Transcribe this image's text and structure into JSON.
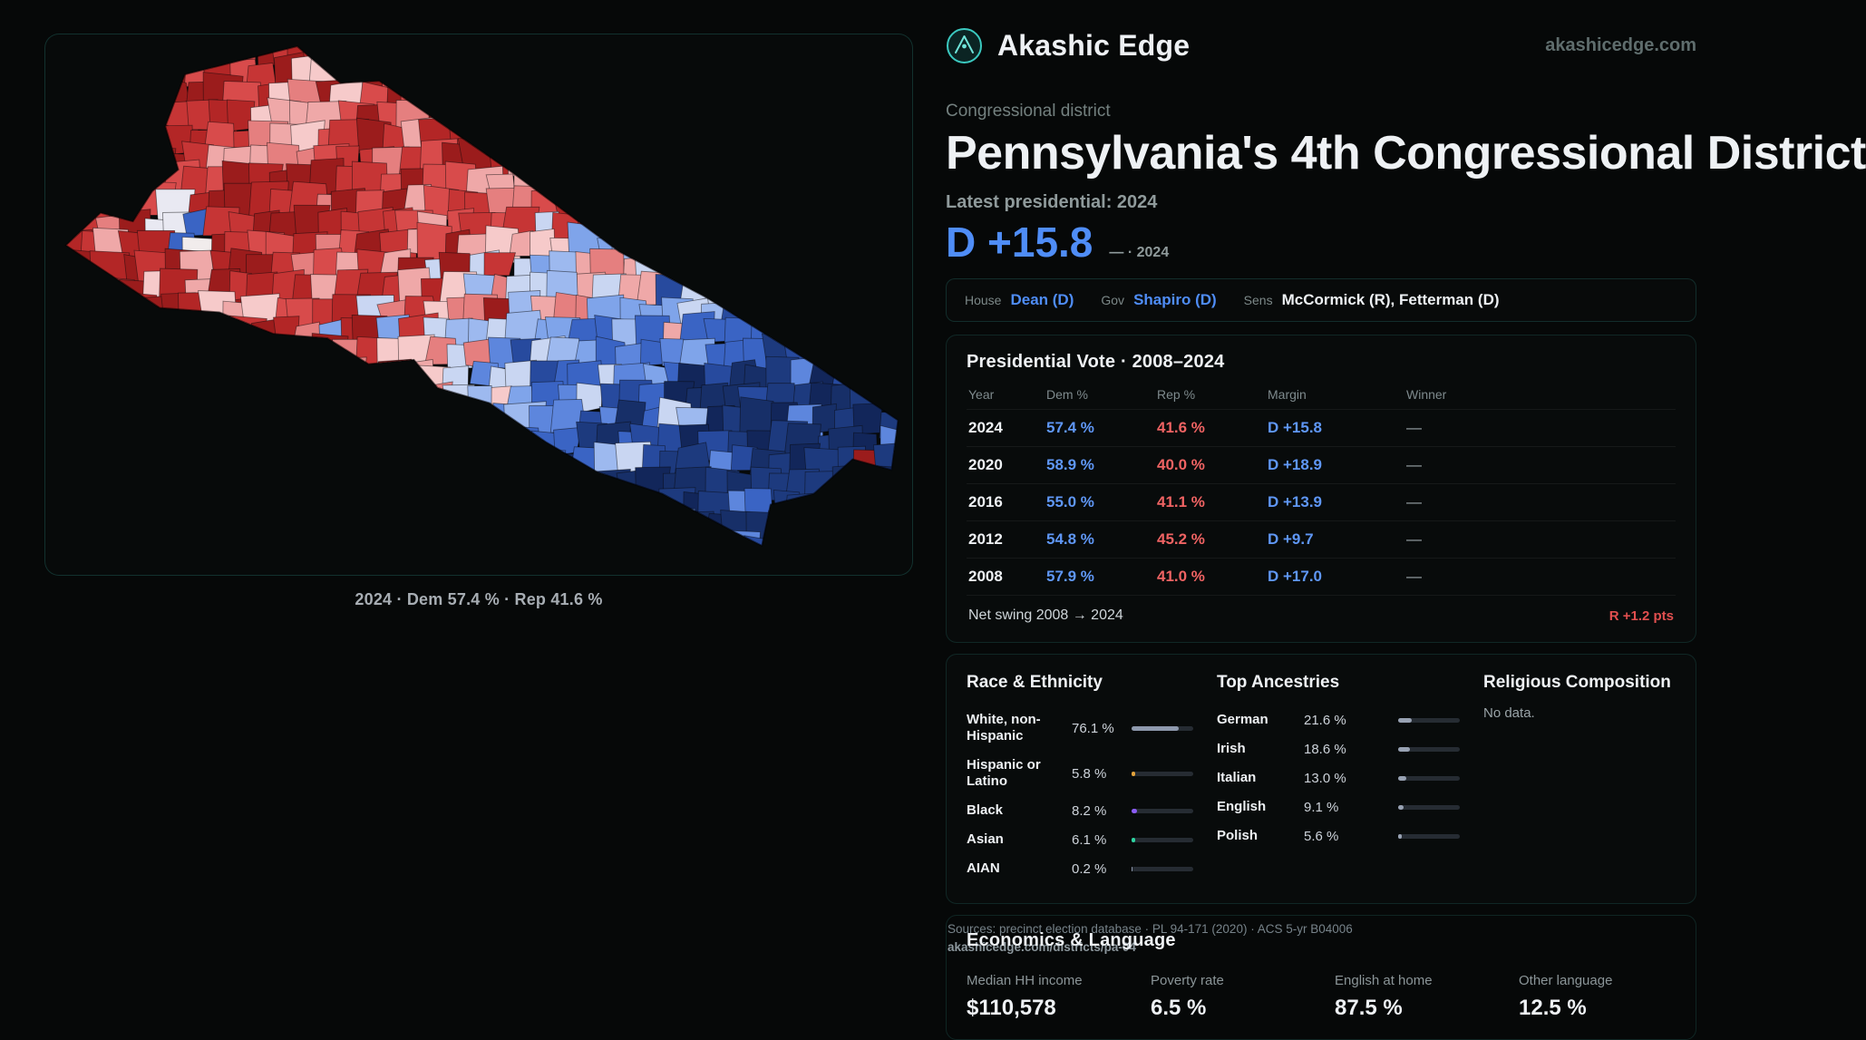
{
  "brand": {
    "name": "Akashic Edge",
    "site": "akashicedge.com"
  },
  "district": {
    "kicker": "Congressional district",
    "title": "Pennsylvania's 4th Congressional District",
    "latest_label": "Latest presidential: 2024",
    "headline_margin": "D +15.8",
    "headline_note": "— · 2024"
  },
  "officials": [
    {
      "role": "House",
      "name": "Dean (D)"
    },
    {
      "role": "Gov",
      "name": "Shapiro (D)"
    },
    {
      "role": "Sens",
      "name": "McCormick (R), Fetterman (D)"
    }
  ],
  "map": {
    "caption": "2024 · Dem 57.4 % · Rep 41.6 %",
    "palette": {
      "reds": [
        "#9b1c1c",
        "#b32626",
        "#c63535",
        "#d84b4b"
      ],
      "light_reds": [
        "#e57f7f",
        "#efa8a8",
        "#f6caca"
      ],
      "light_blues": [
        "#9db9ef",
        "#7fa4ea",
        "#c9d6f2"
      ],
      "blues": [
        "#5d86dd",
        "#3a64c4",
        "#274a9e"
      ],
      "deep_blues": [
        "#1d3a7e",
        "#172f68",
        "#12265a"
      ],
      "whites": [
        "#f1ecec",
        "#e9e9f2"
      ]
    }
  },
  "presidential_vote": {
    "title": "Presidential Vote · 2008–2024",
    "columns": {
      "year": "Year",
      "dem": "Dem %",
      "rep": "Rep %",
      "margin": "Margin",
      "winner": "Winner"
    },
    "rows": [
      {
        "year": "2024",
        "dem": "57.4 %",
        "rep": "41.6 %",
        "margin": "D +15.8",
        "winner": "—"
      },
      {
        "year": "2020",
        "dem": "58.9 %",
        "rep": "40.0 %",
        "margin": "D +18.9",
        "winner": "—"
      },
      {
        "year": "2016",
        "dem": "55.0 %",
        "rep": "41.1 %",
        "margin": "D +13.9",
        "winner": "—"
      },
      {
        "year": "2012",
        "dem": "54.8 %",
        "rep": "45.2 %",
        "margin": "D +9.7",
        "winner": "—"
      },
      {
        "year": "2008",
        "dem": "57.9 %",
        "rep": "41.0 %",
        "margin": "D +17.0",
        "winner": "—"
      }
    ],
    "net_swing_label": "Net swing 2008 → 2024",
    "net_swing_value": "R +1.2 pts"
  },
  "demographics": {
    "race": {
      "title": "Race & Ethnicity",
      "rows": [
        {
          "label": "White, non-Hispanic",
          "value": "76.1 %",
          "pct": 76.1,
          "color": "#8e99ad"
        },
        {
          "label": "Hispanic or Latino",
          "value": "5.8 %",
          "pct": 5.8,
          "color": "#e2a23b"
        },
        {
          "label": "Black",
          "value": "8.2 %",
          "pct": 8.2,
          "color": "#8b5cf6"
        },
        {
          "label": "Asian",
          "value": "6.1 %",
          "pct": 6.1,
          "color": "#2dd4a0"
        },
        {
          "label": "AIAN",
          "value": "0.2 %",
          "pct": 0.2,
          "color": "#8e99ad"
        }
      ]
    },
    "ancestries": {
      "title": "Top Ancestries",
      "rows": [
        {
          "label": "German",
          "value": "21.6 %",
          "pct": 21.6
        },
        {
          "label": "Irish",
          "value": "18.6 %",
          "pct": 18.6
        },
        {
          "label": "Italian",
          "value": "13.0 %",
          "pct": 13.0
        },
        {
          "label": "English",
          "value": "9.1 %",
          "pct": 9.1
        },
        {
          "label": "Polish",
          "value": "5.6 %",
          "pct": 5.6
        }
      ]
    },
    "religion": {
      "title": "Religious Composition",
      "empty": "No data."
    }
  },
  "economics": {
    "title": "Economics & Language",
    "stats": [
      {
        "label": "Median HH income",
        "value": "$110,578"
      },
      {
        "label": "Poverty rate",
        "value": "6.5 %"
      },
      {
        "label": "English at home",
        "value": "87.5 %"
      },
      {
        "label": "Other language",
        "value": "12.5 %"
      }
    ]
  },
  "footer": {
    "sources": "Sources: precinct election database · PL 94-171 (2020) · ACS 5-yr B04006",
    "permalink": "akashicedge.com/districts/pa-04"
  }
}
